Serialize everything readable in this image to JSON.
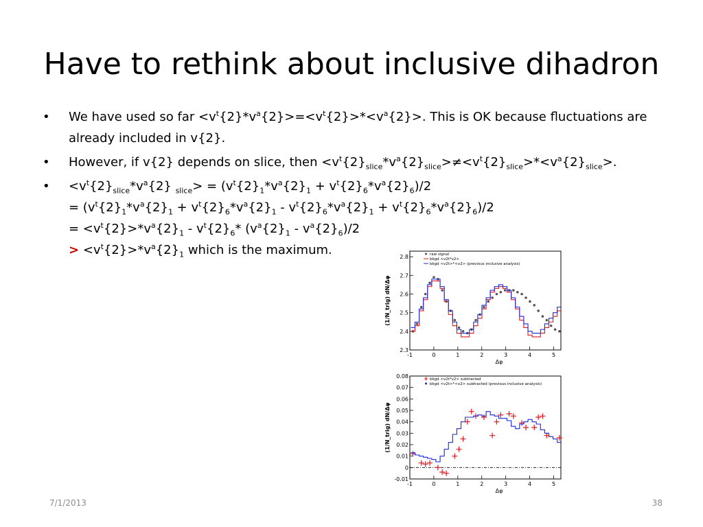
{
  "slide": {
    "title": "Have to rethink about inclusive dihadron",
    "bullet_symbol": "•",
    "footer_date": "7/1/2013",
    "footer_page": "38"
  },
  "bullets": [
    {
      "parts": [
        {
          "t": "We have used so far <v"
        },
        {
          "sup": "t"
        },
        {
          "t": "{2}*v"
        },
        {
          "sup": "a"
        },
        {
          "t": "{2}>=<v"
        },
        {
          "sup": "t"
        },
        {
          "t": "{2}>*<v"
        },
        {
          "sup": "a"
        },
        {
          "t": "{2}>. This is OK because fluctuations are already included in v{2}."
        }
      ]
    },
    {
      "parts": [
        {
          "t": "However, if v{2} depends on slice, then <v"
        },
        {
          "sup": "t"
        },
        {
          "t": "{2}"
        },
        {
          "sub": "slice"
        },
        {
          "t": "*v"
        },
        {
          "sup": "a"
        },
        {
          "t": "{2}"
        },
        {
          "sub": "slice"
        },
        {
          "t": ">≠<v"
        },
        {
          "sup": "t"
        },
        {
          "t": "{2}"
        },
        {
          "sub": "slice"
        },
        {
          "t": ">*<v"
        },
        {
          "sup": "a"
        },
        {
          "t": "{2}"
        },
        {
          "sub": "slice"
        },
        {
          "t": ">."
        }
      ]
    },
    {
      "lines": [
        [
          {
            "t": "<v"
          },
          {
            "sup": "t"
          },
          {
            "t": "{2}"
          },
          {
            "sub": "slice"
          },
          {
            "t": "*v"
          },
          {
            "sup": "a"
          },
          {
            "t": "{2} "
          },
          {
            "sub": "slice"
          },
          {
            "t": "> = (v"
          },
          {
            "sup": "t"
          },
          {
            "t": "{2}"
          },
          {
            "sub": "1"
          },
          {
            "t": "*v"
          },
          {
            "sup": "a"
          },
          {
            "t": "{2}"
          },
          {
            "sub": "1"
          },
          {
            "t": " + v"
          },
          {
            "sup": "t"
          },
          {
            "t": "{2}"
          },
          {
            "sub": "6"
          },
          {
            "t": "*v"
          },
          {
            "sup": "a"
          },
          {
            "t": "{2}"
          },
          {
            "sub": "6"
          },
          {
            "t": ")/2"
          }
        ],
        [
          {
            "t": "= (v"
          },
          {
            "sup": "t"
          },
          {
            "t": "{2}"
          },
          {
            "sub": "1"
          },
          {
            "t": "*v"
          },
          {
            "sup": "a"
          },
          {
            "t": "{2}"
          },
          {
            "sub": "1"
          },
          {
            "t": " + v"
          },
          {
            "sup": "t"
          },
          {
            "t": "{2}"
          },
          {
            "sub": "6"
          },
          {
            "t": "*v"
          },
          {
            "sup": "a"
          },
          {
            "t": "{2}"
          },
          {
            "sub": "1"
          },
          {
            "t": " - v"
          },
          {
            "sup": "t"
          },
          {
            "t": "{2}"
          },
          {
            "sub": "6"
          },
          {
            "t": "*v"
          },
          {
            "sup": "a"
          },
          {
            "t": "{2}"
          },
          {
            "sub": "1"
          },
          {
            "t": " + v"
          },
          {
            "sup": "t"
          },
          {
            "t": "{2}"
          },
          {
            "sub": "6"
          },
          {
            "t": "*v"
          },
          {
            "sup": "a"
          },
          {
            "t": "{2}"
          },
          {
            "sub": "6"
          },
          {
            "t": ")/2"
          }
        ],
        [
          {
            "t": "= <v"
          },
          {
            "sup": "t"
          },
          {
            "t": "{2}>*v"
          },
          {
            "sup": "a"
          },
          {
            "t": "{2}"
          },
          {
            "sub": "1"
          },
          {
            "t": " - v"
          },
          {
            "sup": "t"
          },
          {
            "t": "{2}"
          },
          {
            "sub": "6"
          },
          {
            "t": "* (v"
          },
          {
            "sup": "a"
          },
          {
            "t": "{2}"
          },
          {
            "sub": "1"
          },
          {
            "t": " - v"
          },
          {
            "sup": "a"
          },
          {
            "t": "{2}"
          },
          {
            "sub": "6"
          },
          {
            "t": ")/2"
          }
        ],
        [
          {
            "gt": ">"
          },
          {
            "t": " <v"
          },
          {
            "sup": "t"
          },
          {
            "t": "{2}>*v"
          },
          {
            "sup": "a"
          },
          {
            "t": "{2}"
          },
          {
            "sub": "1"
          },
          {
            "t": " which is the maximum."
          }
        ]
      ]
    }
  ],
  "colors": {
    "red": "#e0151b",
    "blue": "#1b28d8",
    "black": "#000000",
    "gt_red": "#c00000",
    "footer": "#8b8b8b"
  },
  "chart_data": [
    {
      "type": "line",
      "xlabel": "Δφ",
      "ylabel": "(1/N_trig) dN/Δφ",
      "xlim": [
        -1,
        5.3
      ],
      "ylim": [
        2.3,
        2.83
      ],
      "xticks": [
        "-1",
        "0",
        "1",
        "2",
        "3",
        "4",
        "5"
      ],
      "yticks": [
        "2.3",
        "2.4",
        "2.5",
        "2.6",
        "2.7",
        "2.8"
      ],
      "legend": {
        "position": "top-left",
        "entries": [
          {
            "label": "raw signal",
            "marker": "circle",
            "color": "#555555"
          },
          {
            "label": "bkgd <v2t*v2>",
            "marker": "line",
            "color": "#e0151b"
          },
          {
            "label": "bkgd <v2t>*<v2> (previous inclusive analysis)",
            "marker": "line",
            "color": "#1b28d8"
          }
        ]
      },
      "bin_width": 0.1745,
      "x_start": -0.96,
      "series": [
        {
          "name": "raw signal",
          "kind": "points",
          "color": "#555555",
          "x": [
            -0.87,
            -0.7,
            -0.52,
            -0.35,
            -0.17,
            0.0,
            0.17,
            0.35,
            0.52,
            0.7,
            0.87,
            1.05,
            1.22,
            1.4,
            1.57,
            1.75,
            1.92,
            2.09,
            2.27,
            2.44,
            2.62,
            2.79,
            2.97,
            3.14,
            3.32,
            3.49,
            3.67,
            3.84,
            4.01,
            4.19,
            4.36,
            4.54,
            4.71,
            4.89,
            5.06,
            5.24
          ],
          "y": [
            2.4,
            2.44,
            2.53,
            2.6,
            2.66,
            2.69,
            2.68,
            2.62,
            2.56,
            2.51,
            2.46,
            2.42,
            2.4,
            2.39,
            2.41,
            2.46,
            2.49,
            2.53,
            2.56,
            2.58,
            2.6,
            2.61,
            2.62,
            2.62,
            2.62,
            2.61,
            2.6,
            2.58,
            2.56,
            2.54,
            2.51,
            2.48,
            2.46,
            2.43,
            2.41,
            2.4
          ]
        },
        {
          "name": "bkgd <v2t*v2>",
          "kind": "step",
          "color": "#e0151b",
          "y": [
            2.4,
            2.43,
            2.51,
            2.57,
            2.64,
            2.67,
            2.67,
            2.63,
            2.56,
            2.49,
            2.43,
            2.39,
            2.37,
            2.37,
            2.39,
            2.43,
            2.47,
            2.52,
            2.57,
            2.61,
            2.63,
            2.64,
            2.63,
            2.61,
            2.57,
            2.52,
            2.46,
            2.42,
            2.38,
            2.37,
            2.37,
            2.39,
            2.42,
            2.45,
            2.48,
            2.51
          ]
        },
        {
          "name": "bkgd <v2t>*<v2> (previous inclusive analysis)",
          "kind": "step",
          "color": "#1b28d8",
          "y": [
            2.42,
            2.45,
            2.52,
            2.58,
            2.65,
            2.68,
            2.68,
            2.64,
            2.57,
            2.51,
            2.45,
            2.41,
            2.39,
            2.39,
            2.41,
            2.45,
            2.49,
            2.54,
            2.58,
            2.62,
            2.64,
            2.65,
            2.64,
            2.62,
            2.58,
            2.53,
            2.48,
            2.44,
            2.4,
            2.39,
            2.39,
            2.41,
            2.44,
            2.47,
            2.5,
            2.53
          ]
        }
      ]
    },
    {
      "type": "line",
      "xlabel": "Δφ",
      "ylabel": "(1/N_trig) dN/Δφ",
      "xlim": [
        -1,
        5.3
      ],
      "ylim": [
        -0.01,
        0.08
      ],
      "xticks": [
        "-1",
        "0",
        "1",
        "2",
        "3",
        "4",
        "5"
      ],
      "yticks": [
        "-0.01",
        "0",
        "0.01",
        "0.02",
        "0.03",
        "0.04",
        "0.05",
        "0.06",
        "0.07",
        "0.08"
      ],
      "legend": {
        "position": "top-left",
        "entries": [
          {
            "label": "bkgd <v2t*v2> subtracted",
            "marker": "cross",
            "color": "#e0151b"
          },
          {
            "label": "bkgd <v2t>*<v2> subtracted (previous inclusive analysis)",
            "marker": "circle",
            "color": "#1b28d8"
          }
        ]
      },
      "bin_width": 0.1745,
      "x_start": -0.96,
      "series": [
        {
          "name": "bkgd <v2t*v2> subtracted",
          "kind": "points",
          "color": "#e0151b",
          "x": [
            -0.87,
            -0.52,
            -0.35,
            -0.17,
            0.17,
            0.35,
            0.52,
            0.87,
            1.05,
            1.22,
            1.4,
            1.57,
            1.75,
            2.09,
            2.44,
            2.62,
            2.79,
            3.14,
            3.32,
            3.67,
            3.84,
            4.19,
            4.36,
            4.54,
            4.71,
            5.24
          ],
          "y": [
            0.012,
            0.004,
            0.003,
            0.004,
            0.0,
            -0.004,
            -0.005,
            0.01,
            0.016,
            0.025,
            0.04,
            0.049,
            0.045,
            0.044,
            0.028,
            0.04,
            0.046,
            0.047,
            0.045,
            0.039,
            0.035,
            0.035,
            0.044,
            0.045,
            0.028,
            0.026
          ]
        },
        {
          "name": "bkgd <v2t>*<v2> subtracted (previous inclusive analysis)",
          "kind": "step",
          "color": "#1b28d8",
          "y": [
            0.013,
            0.011,
            0.01,
            0.009,
            0.008,
            0.007,
            0.005,
            0.01,
            0.016,
            0.022,
            0.029,
            0.034,
            0.04,
            0.044,
            0.044,
            0.045,
            0.046,
            0.045,
            0.049,
            0.046,
            0.045,
            0.043,
            0.043,
            0.041,
            0.036,
            0.034,
            0.038,
            0.04,
            0.042,
            0.04,
            0.038,
            0.033,
            0.03,
            0.027,
            0.025,
            0.022
          ]
        }
      ]
    }
  ]
}
